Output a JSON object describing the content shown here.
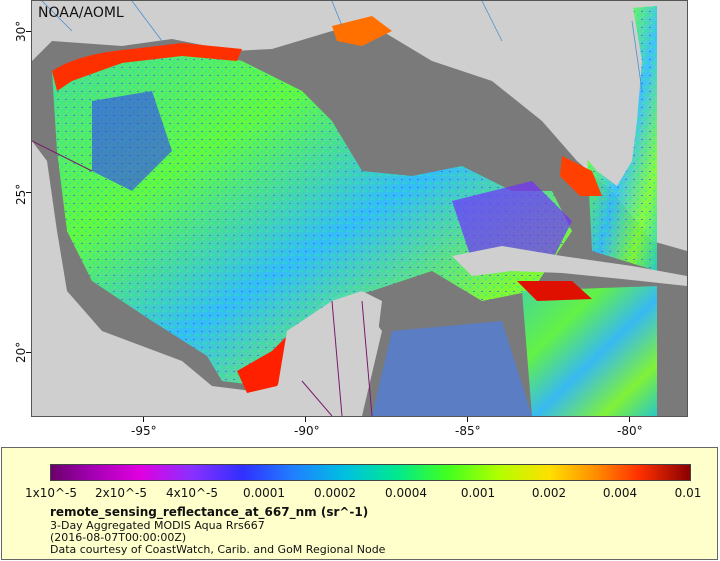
{
  "map": {
    "credit": "NOAA/AOML",
    "y_axis_labels": [
      "30°",
      "25°",
      "20°"
    ],
    "x_axis_labels": [
      "-95°",
      "-90°",
      "-85°",
      "-80°"
    ],
    "colors": {
      "land": "#cfcfcf",
      "water_nodata": "#7a7a7a",
      "coast_high": "#ff2000",
      "offshore_mid": "#40ff40"
    }
  },
  "legend": {
    "colorbar_labels": [
      "1x10^-5",
      "2x10^-5",
      "4x10^-5",
      "0.0001",
      "0.0002",
      "0.0004",
      "0.001",
      "0.002",
      "0.004",
      "0.01"
    ],
    "variable": "remote_sensing_reflectance_at_667_nm (sr^-1)",
    "description": "3-Day Aggregated MODIS Aqua Rrs667",
    "time": "(2016-08-07T00:00:00Z)",
    "source": "Data courtesy of CoastWatch, Carib. and GoM Regional Node"
  }
}
